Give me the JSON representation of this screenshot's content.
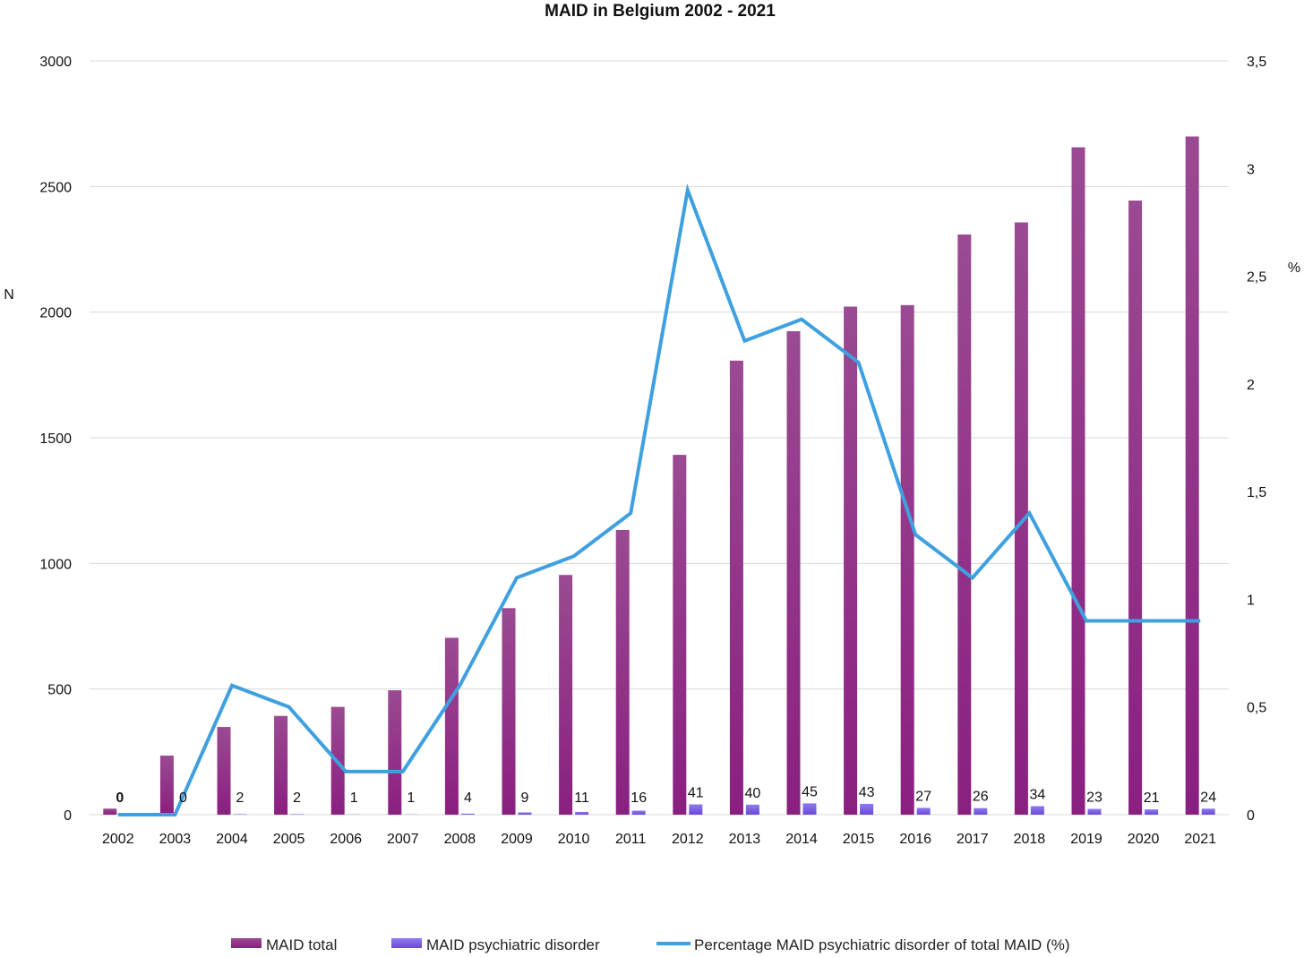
{
  "chart_data": {
    "type": "bar",
    "title": "MAID in Belgium 2002 - 2021",
    "ylabel": "N",
    "y2label": "%",
    "categories": [
      "2002",
      "2003",
      "2004",
      "2005",
      "2006",
      "2007",
      "2008",
      "2009",
      "2010",
      "2011",
      "2012",
      "2013",
      "2014",
      "2015",
      "2016",
      "2017",
      "2018",
      "2019",
      "2020",
      "2021"
    ],
    "ylim": [
      0,
      3000
    ],
    "yticks": [
      "0",
      "500",
      "1000",
      "1500",
      "2000",
      "2500",
      "3000"
    ],
    "y2lim": [
      0,
      3.5
    ],
    "y2ticks": [
      "0",
      "0,5",
      "1",
      "1,5",
      "2",
      "2,5",
      "3",
      "3,5"
    ],
    "grid": true,
    "legend_position": "bottom",
    "series": [
      {
        "name": "MAID total",
        "kind": "bar",
        "axis": "left",
        "color": "#8e2f86",
        "values": [
          24,
          235,
          349,
          393,
          429,
          495,
          704,
          822,
          954,
          1133,
          1432,
          1807,
          1924,
          2022,
          2028,
          2309,
          2357,
          2656,
          2444,
          2699
        ]
      },
      {
        "name": "MAID psychiatric disorder",
        "kind": "bar",
        "axis": "left",
        "color": "#7b5be0",
        "values": [
          0,
          0,
          2,
          2,
          1,
          1,
          4,
          9,
          11,
          16,
          41,
          40,
          45,
          43,
          27,
          26,
          34,
          23,
          21,
          24
        ],
        "labels": [
          "0",
          "0",
          "2",
          "2",
          "1",
          "1",
          "4",
          "9",
          "11",
          "16",
          "41",
          "40",
          "45",
          "43",
          "27",
          "26",
          "34",
          "23",
          "21",
          "24"
        ]
      },
      {
        "name": "Percentage MAID psychiatric disorder of total MAID (%)",
        "kind": "line",
        "axis": "right",
        "color": "#3fa0e0",
        "values": [
          0,
          0,
          0.6,
          0.5,
          0.2,
          0.2,
          0.6,
          1.1,
          1.2,
          1.4,
          2.9,
          2.2,
          2.3,
          2.1,
          1.3,
          1.1,
          1.4,
          0.9,
          0.9,
          0.9
        ]
      }
    ]
  }
}
